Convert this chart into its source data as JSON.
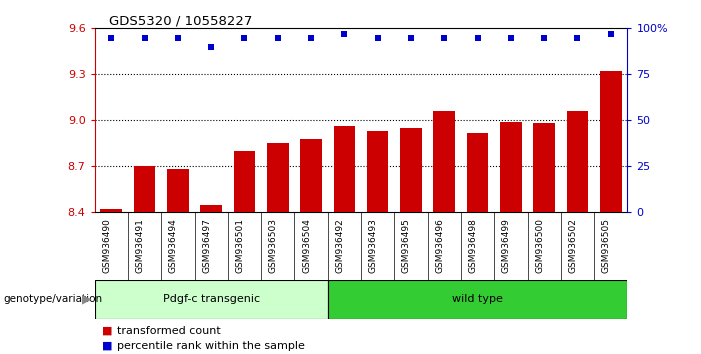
{
  "title": "GDS5320 / 10558227",
  "samples": [
    "GSM936490",
    "GSM936491",
    "GSM936494",
    "GSM936497",
    "GSM936501",
    "GSM936503",
    "GSM936504",
    "GSM936492",
    "GSM936493",
    "GSM936495",
    "GSM936496",
    "GSM936498",
    "GSM936499",
    "GSM936500",
    "GSM936502",
    "GSM936505"
  ],
  "red_values": [
    8.42,
    8.7,
    8.68,
    8.45,
    8.8,
    8.85,
    8.88,
    8.96,
    8.93,
    8.95,
    9.06,
    8.92,
    8.99,
    8.98,
    9.06,
    9.32
  ],
  "blue_values": [
    95,
    95,
    95,
    90,
    95,
    95,
    95,
    97,
    95,
    95,
    95,
    95,
    95,
    95,
    95,
    97
  ],
  "groups": [
    {
      "label": "Pdgf-c transgenic",
      "start": 0,
      "end": 7,
      "color": "#CCFFCC"
    },
    {
      "label": "wild type",
      "start": 7,
      "end": 16,
      "color": "#33CC33"
    }
  ],
  "ylim_left": [
    8.4,
    9.6
  ],
  "ylim_right": [
    0,
    100
  ],
  "yticks_left": [
    8.4,
    8.7,
    9.0,
    9.3,
    9.6
  ],
  "yticks_right": [
    0,
    25,
    50,
    75,
    100
  ],
  "ytick_labels_right": [
    "0",
    "25",
    "50",
    "75",
    "100%"
  ],
  "grid_values": [
    8.7,
    9.0,
    9.3
  ],
  "bar_color": "#CC0000",
  "dot_color": "#0000CC",
  "background_color": "#ffffff",
  "legend_items": [
    {
      "color": "#CC0000",
      "label": "transformed count"
    },
    {
      "color": "#0000CC",
      "label": "percentile rank within the sample"
    }
  ],
  "genotype_label": "genotype/variation",
  "bar_width": 0.65,
  "label_bg": "#CCCCCC",
  "left_spine_color": "#CC0000",
  "right_spine_color": "#0000CC"
}
